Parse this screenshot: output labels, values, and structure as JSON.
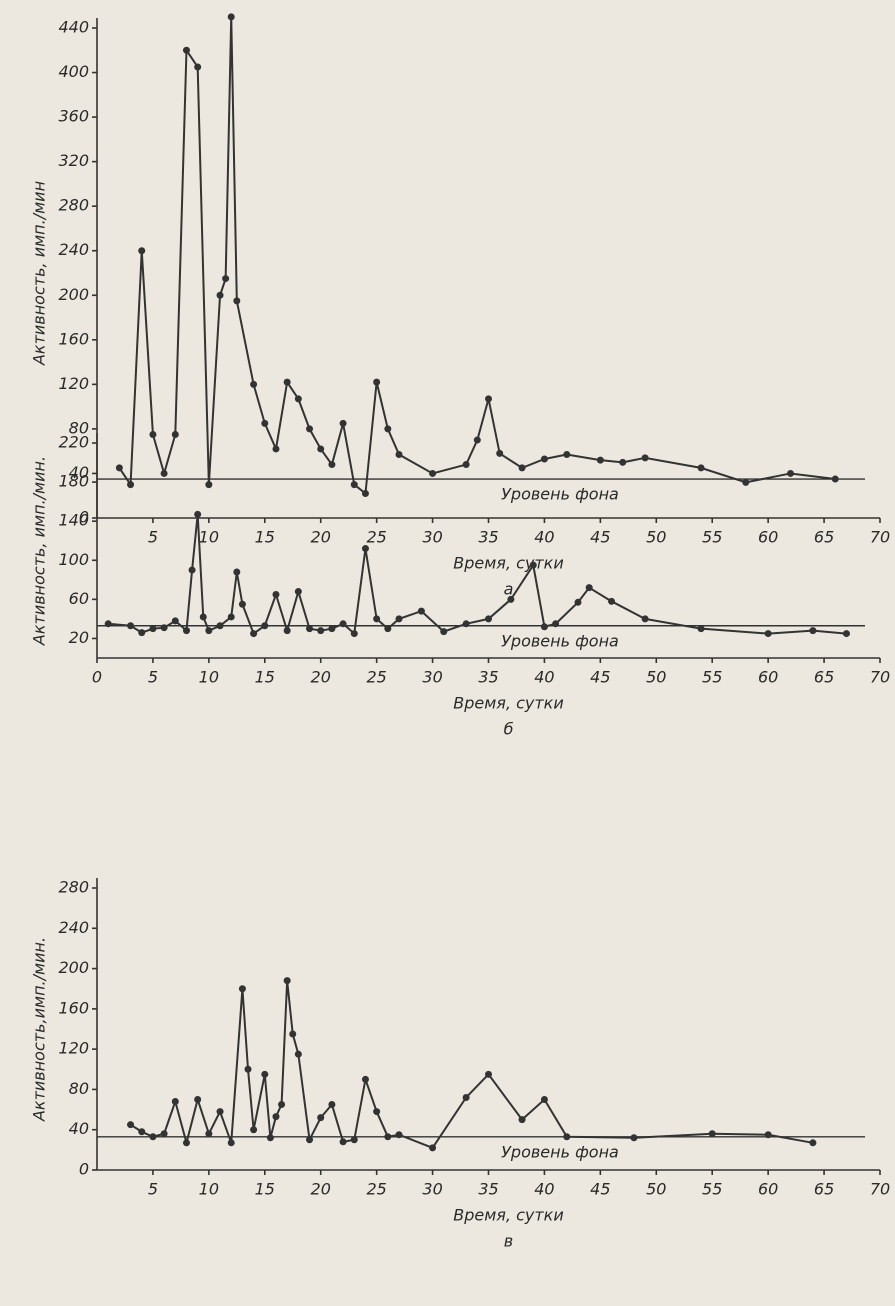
{
  "chart_data": [
    {
      "type": "line",
      "panel_label": "а",
      "xlabel": "Время, сутки",
      "ylabel": "Активность, имп./мин",
      "background_label": "Уровень фона",
      "background_level": 35,
      "color": "#333333",
      "xlim": [
        0,
        70
      ],
      "xticks": [
        5,
        10,
        15,
        20,
        25,
        30,
        35,
        40,
        45,
        50,
        55,
        60,
        65,
        70
      ],
      "ylim": [
        0,
        440
      ],
      "yticks": [
        0,
        40,
        80,
        120,
        160,
        200,
        240,
        280,
        320,
        360,
        400,
        440
      ],
      "series": [
        {
          "x": [
            2,
            3,
            4,
            5,
            6,
            7,
            8,
            9,
            10,
            11,
            11.5,
            12,
            12.5,
            14,
            15,
            16,
            17,
            18,
            19,
            20,
            21,
            22,
            23,
            24,
            25,
            26,
            27,
            30,
            33,
            34,
            35,
            36,
            38,
            40,
            42,
            45,
            47,
            49,
            54,
            58,
            62,
            66
          ],
          "values": [
            45,
            30,
            240,
            75,
            40,
            75,
            420,
            405,
            30,
            200,
            215,
            450,
            195,
            120,
            85,
            62,
            122,
            107,
            80,
            62,
            48,
            85,
            30,
            22,
            122,
            80,
            57,
            40,
            48,
            70,
            107,
            58,
            45,
            53,
            57,
            52,
            50,
            54,
            45,
            32,
            40,
            35
          ]
        }
      ]
    },
    {
      "type": "line",
      "panel_label": "б",
      "xlabel": "Время, сутки",
      "ylabel": "Активность, имп./мин.",
      "background_label": "Уровень фона",
      "background_level": 33,
      "color": "#333333",
      "xlim": [
        0,
        70
      ],
      "xticks": [
        0,
        5,
        10,
        15,
        20,
        25,
        30,
        35,
        40,
        45,
        50,
        55,
        60,
        65,
        70
      ],
      "ylim": [
        0,
        220
      ],
      "yticks": [
        20,
        60,
        100,
        140,
        180,
        220
      ],
      "series": [
        {
          "x": [
            1,
            3,
            4,
            5,
            6,
            7,
            8,
            8.5,
            9,
            9.5,
            10,
            11,
            12,
            12.5,
            13,
            14,
            15,
            16,
            17,
            18,
            19,
            20,
            21,
            22,
            23,
            24,
            25,
            26,
            27,
            29,
            31,
            33,
            35,
            37,
            39,
            40,
            41,
            43,
            44,
            46,
            49,
            54,
            60,
            64,
            67
          ],
          "values": [
            35,
            33,
            26,
            30,
            31,
            38,
            28,
            90,
            147,
            42,
            28,
            33,
            42,
            88,
            55,
            25,
            33,
            65,
            28,
            68,
            30,
            28,
            30,
            35,
            25,
            112,
            40,
            30,
            40,
            48,
            27,
            35,
            40,
            60,
            95,
            32,
            35,
            57,
            72,
            58,
            40,
            30,
            25,
            28,
            25
          ]
        }
      ]
    },
    {
      "type": "line",
      "panel_label": "в",
      "xlabel": "Время, сутки",
      "ylabel": "Активность,имп./мин.",
      "background_label": "Уровень фона",
      "background_level": 33,
      "color": "#333333",
      "xlim": [
        0,
        70
      ],
      "xticks": [
        5,
        10,
        15,
        20,
        25,
        30,
        35,
        40,
        45,
        50,
        55,
        60,
        65,
        70
      ],
      "ylim": [
        0,
        280
      ],
      "yticks": [
        0,
        40,
        80,
        120,
        160,
        200,
        240,
        280
      ],
      "series": [
        {
          "x": [
            3,
            4,
            5,
            6,
            7,
            8,
            9,
            10,
            11,
            12,
            13,
            13.5,
            14,
            15,
            15.5,
            16,
            16.5,
            17,
            17.5,
            18,
            19,
            20,
            21,
            22,
            23,
            24,
            25,
            26,
            27,
            30,
            33,
            35,
            38,
            40,
            42,
            48,
            55,
            60,
            64
          ],
          "values": [
            45,
            38,
            33,
            36,
            68,
            27,
            70,
            36,
            58,
            27,
            180,
            100,
            40,
            95,
            32,
            53,
            65,
            188,
            135,
            115,
            30,
            52,
            65,
            28,
            30,
            90,
            58,
            33,
            35,
            22,
            72,
            95,
            50,
            70,
            33,
            32,
            36,
            35,
            27
          ]
        }
      ]
    }
  ]
}
